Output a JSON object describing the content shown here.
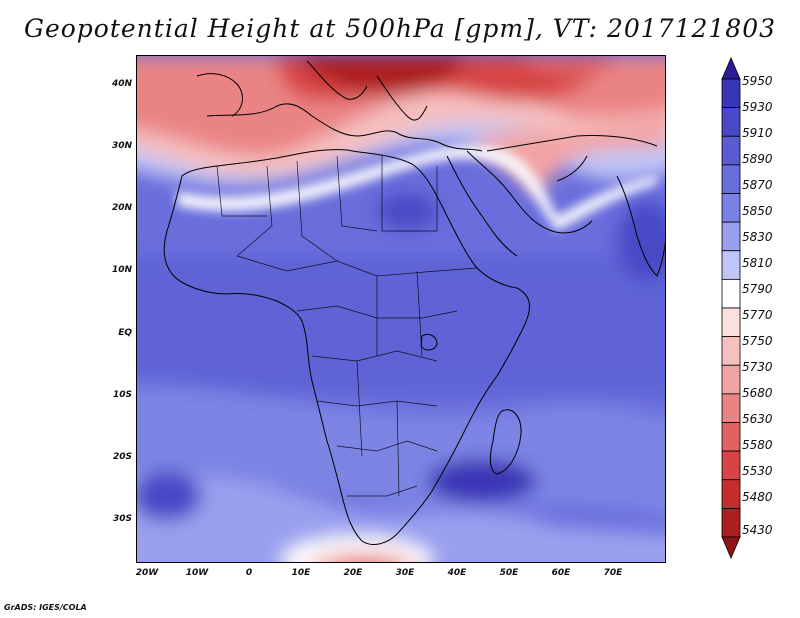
{
  "title": "Geopotential Height at 500hPa [gpm], VT: 2017121803",
  "credit": "GrADS: IGES/COLA",
  "lat_labels": [
    "40N",
    "30N",
    "20N",
    "10N",
    "EQ",
    "10S",
    "20S",
    "30S"
  ],
  "lon_labels": [
    "20W",
    "10W",
    "0",
    "10E",
    "20E",
    "30E",
    "40E",
    "50E",
    "60E",
    "70E"
  ],
  "colorbar": {
    "labels": [
      "5950",
      "5930",
      "5910",
      "5890",
      "5870",
      "5850",
      "5830",
      "5810",
      "5790",
      "5770",
      "5750",
      "5730",
      "5680",
      "5630",
      "5580",
      "5530",
      "5480",
      "5430"
    ],
    "colors": [
      "#2c1c9a",
      "#3a35b5",
      "#4a48c6",
      "#5b5cd2",
      "#6a6edc",
      "#7a80e4",
      "#9aa0ee",
      "#c0c4f6",
      "#ffffff",
      "#fbe0e0",
      "#f6c0c0",
      "#f2a4a4",
      "#ea8484",
      "#e26262",
      "#d84444",
      "#c62e2e",
      "#ae1f1f",
      "#901414"
    ]
  },
  "map": {
    "extent": {
      "lon_min": -22,
      "lon_max": 80,
      "lat_min": -36,
      "lat_max": 45
    },
    "field_description_colors": {
      "low": "#a01818",
      "high": "#4a48c6"
    }
  }
}
